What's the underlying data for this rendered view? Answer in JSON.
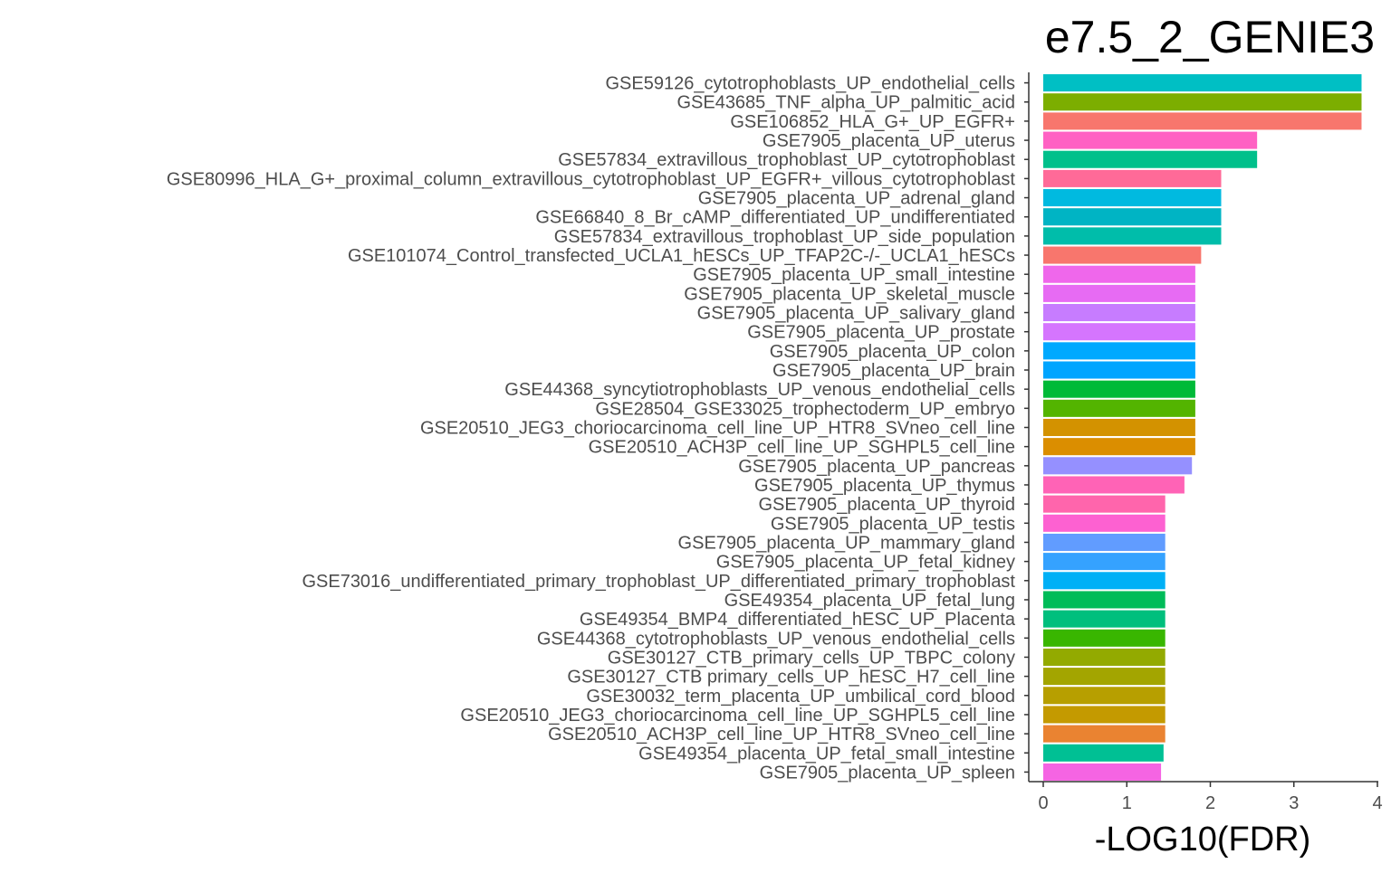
{
  "chart_data": {
    "type": "bar",
    "orientation": "horizontal",
    "title": "e7.5_2_GENIE3",
    "xlabel": "-LOG10(FDR)",
    "ylabel": "",
    "xlim": [
      0,
      4
    ],
    "xticks": [
      0,
      1,
      2,
      3,
      4
    ],
    "grid": false,
    "legend": "none",
    "categories": [
      "GSE59126_cytotrophoblasts_UP_endothelial_cells",
      "GSE43685_TNF_alpha_UP_palmitic_acid",
      "GSE106852_HLA_G+_UP_EGFR+",
      "GSE7905_placenta_UP_uterus",
      "GSE57834_extravillous_trophoblast_UP_cytotrophoblast",
      "GSE80996_HLA_G+_proximal_column_extravillous_cytotrophoblast_UP_EGFR+_villous_cytotrophoblast",
      "GSE7905_placenta_UP_adrenal_gland",
      "GSE66840_8_Br_cAMP_differentiated_UP_undifferentiated",
      "GSE57834_extravillous_trophoblast_UP_side_population",
      "GSE101074_Control_transfected_UCLA1_hESCs_UP_TFAP2C-/-_UCLA1_hESCs",
      "GSE7905_placenta_UP_small_intestine",
      "GSE7905_placenta_UP_skeletal_muscle",
      "GSE7905_placenta_UP_salivary_gland",
      "GSE7905_placenta_UP_prostate",
      "GSE7905_placenta_UP_colon",
      "GSE7905_placenta_UP_brain",
      "GSE44368_syncytiotrophoblasts_UP_venous_endothelial_cells",
      "GSE28504_GSE33025_trophectoderm_UP_embryo",
      "GSE20510_JEG3_choriocarcinoma_cell_line_UP_HTR8_SVneo_cell_line",
      "GSE20510_ACH3P_cell_line_UP_SGHPL5_cell_line",
      "GSE7905_placenta_UP_pancreas",
      "GSE7905_placenta_UP_thymus",
      "GSE7905_placenta_UP_thyroid",
      "GSE7905_placenta_UP_testis",
      "GSE7905_placenta_UP_mammary_gland",
      "GSE7905_placenta_UP_fetal_kidney",
      "GSE73016_undifferentiated_primary_trophoblast_UP_differentiated_primary_trophoblast",
      "GSE49354_placenta_UP_fetal_lung",
      "GSE49354_BMP4_differentiated_hESC_UP_Placenta",
      "GSE44368_cytotrophoblasts_UP_venous_endothelial_cells",
      "GSE30127_CTB_primary_cells_UP_TBPC_colony",
      "GSE30127_CTB primary_cells_UP_hESC_H7_cell_line",
      "GSE30032_term_placenta_UP_umbilical_cord_blood",
      "GSE20510_JEG3_choriocarcinoma_cell_line_UP_SGHPL5_cell_line",
      "GSE20510_ACH3P_cell_line_UP_HTR8_SVneo_cell_line",
      "GSE49354_placenta_UP_fetal_small_intestine",
      "GSE7905_placenta_UP_spleen"
    ],
    "values": [
      3.81,
      3.81,
      3.81,
      2.56,
      2.56,
      2.13,
      2.13,
      2.13,
      2.13,
      1.89,
      1.82,
      1.82,
      1.82,
      1.82,
      1.82,
      1.82,
      1.82,
      1.82,
      1.82,
      1.82,
      1.78,
      1.69,
      1.46,
      1.46,
      1.46,
      1.46,
      1.46,
      1.46,
      1.46,
      1.46,
      1.46,
      1.46,
      1.46,
      1.46,
      1.46,
      1.44,
      1.41
    ],
    "colors": [
      "#00BFC4",
      "#7CAE00",
      "#F8766D",
      "#FF61C3",
      "#00C08B",
      "#FF6A98",
      "#00BAE0",
      "#00B4C4",
      "#00BDAA",
      "#F8766D",
      "#EF67EB",
      "#E76BF3",
      "#C77CFF",
      "#D575FE",
      "#00A9FF",
      "#00A5FF",
      "#00BA38",
      "#53B400",
      "#D39200",
      "#DB8E00",
      "#9590FF",
      "#FF63B6",
      "#FF65AC",
      "#FD61D1",
      "#619CFF",
      "#35A2FF",
      "#00B0F6",
      "#00BC59",
      "#00BF7D",
      "#39B600",
      "#93AA00",
      "#A3A500",
      "#B79F00",
      "#C49A00",
      "#EA8331",
      "#00C094",
      "#F564E3"
    ]
  }
}
